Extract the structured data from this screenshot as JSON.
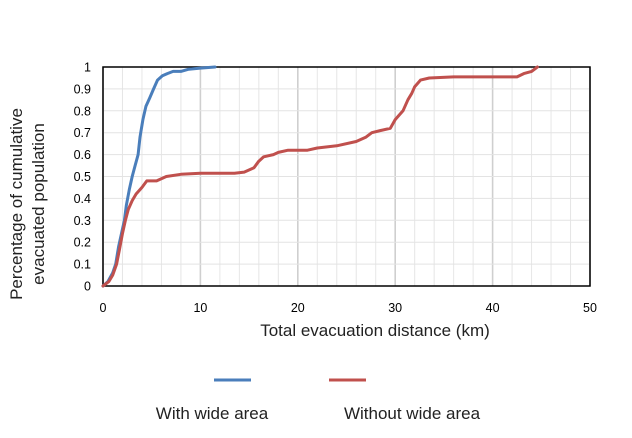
{
  "chart_data": {
    "type": "line",
    "xlabel": "Total evacuation distance (km)",
    "ylabel_lines": [
      "Percentage of cumulative",
      "evacuated population"
    ],
    "xlim": [
      0,
      50
    ],
    "ylim": [
      0,
      1
    ],
    "x_ticks": [
      "0",
      "10",
      "20",
      "30",
      "40",
      "50"
    ],
    "y_ticks": [
      "0",
      "0.1",
      "0.2",
      "0.3",
      "0.4",
      "0.5",
      "0.6",
      "0.7",
      "0.8",
      "0.9",
      "1"
    ],
    "grid": true,
    "legend_position": "bottom",
    "series": [
      {
        "name": "With wide area",
        "color": "#4a7ebb",
        "points": [
          [
            0,
            0
          ],
          [
            0.5,
            0.02
          ],
          [
            1,
            0.06
          ],
          [
            1.3,
            0.1
          ],
          [
            1.6,
            0.18
          ],
          [
            1.9,
            0.24
          ],
          [
            2.2,
            0.3
          ],
          [
            2.4,
            0.37
          ],
          [
            2.7,
            0.44
          ],
          [
            3.0,
            0.5
          ],
          [
            3.3,
            0.55
          ],
          [
            3.6,
            0.6
          ],
          [
            3.8,
            0.68
          ],
          [
            4.1,
            0.76
          ],
          [
            4.4,
            0.82
          ],
          [
            4.8,
            0.86
          ],
          [
            5.2,
            0.9
          ],
          [
            5.6,
            0.94
          ],
          [
            6.1,
            0.96
          ],
          [
            6.6,
            0.97
          ],
          [
            7.2,
            0.98
          ],
          [
            8.0,
            0.98
          ],
          [
            8.8,
            0.99
          ],
          [
            10.0,
            0.995
          ],
          [
            11.5,
            1.0
          ]
        ]
      },
      {
        "name": "Without wide area",
        "color": "#c0504d",
        "points": [
          [
            0,
            0
          ],
          [
            0.6,
            0.02
          ],
          [
            1.0,
            0.05
          ],
          [
            1.4,
            0.1
          ],
          [
            1.7,
            0.17
          ],
          [
            2.0,
            0.24
          ],
          [
            2.3,
            0.3
          ],
          [
            2.6,
            0.35
          ],
          [
            3.0,
            0.39
          ],
          [
            3.4,
            0.42
          ],
          [
            4.0,
            0.45
          ],
          [
            4.5,
            0.48
          ],
          [
            5.5,
            0.48
          ],
          [
            6.5,
            0.5
          ],
          [
            8.0,
            0.51
          ],
          [
            10.0,
            0.515
          ],
          [
            12.0,
            0.515
          ],
          [
            13.5,
            0.515
          ],
          [
            14.5,
            0.52
          ],
          [
            15.5,
            0.54
          ],
          [
            16.0,
            0.57
          ],
          [
            16.5,
            0.59
          ],
          [
            17.5,
            0.6
          ],
          [
            18.0,
            0.61
          ],
          [
            19.0,
            0.62
          ],
          [
            21.0,
            0.62
          ],
          [
            22.0,
            0.63
          ],
          [
            24.0,
            0.64
          ],
          [
            26.0,
            0.66
          ],
          [
            27.0,
            0.68
          ],
          [
            27.6,
            0.7
          ],
          [
            28.5,
            0.71
          ],
          [
            29.5,
            0.72
          ],
          [
            30.0,
            0.76
          ],
          [
            30.8,
            0.8
          ],
          [
            31.3,
            0.85
          ],
          [
            31.7,
            0.88
          ],
          [
            32.0,
            0.91
          ],
          [
            32.6,
            0.94
          ],
          [
            33.5,
            0.95
          ],
          [
            36.0,
            0.955
          ],
          [
            40.0,
            0.955
          ],
          [
            42.5,
            0.955
          ],
          [
            43.2,
            0.97
          ],
          [
            44.0,
            0.98
          ],
          [
            44.6,
            1.0
          ]
        ]
      }
    ]
  }
}
